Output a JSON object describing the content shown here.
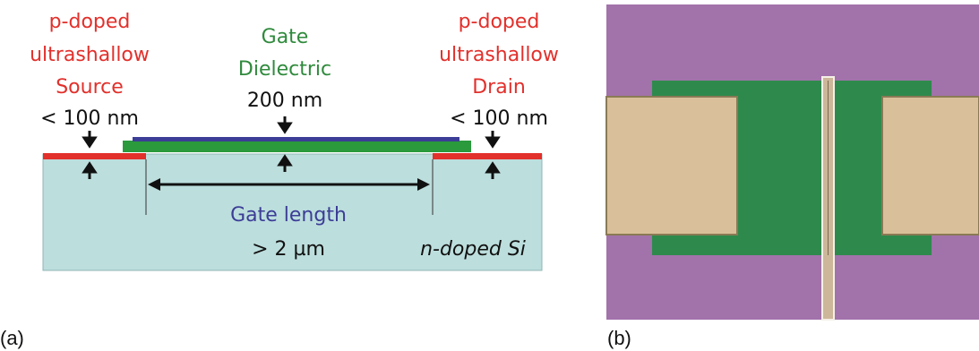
{
  "panel_a": {
    "source": {
      "lines": [
        "p-doped",
        "ultrashallow",
        "Source"
      ],
      "depth": "< 100 nm"
    },
    "gate": {
      "lines": [
        "Gate",
        "Dielectric"
      ],
      "thickness": "200 nm"
    },
    "drain": {
      "lines": [
        "p-doped",
        "ultrashallow",
        "Drain"
      ],
      "depth": "< 100 nm"
    },
    "gate_length": {
      "label": "Gate length",
      "value": "> 2 µm"
    },
    "substrate": "n-doped Si",
    "caption": "(a)"
  },
  "panel_b": {
    "caption": "(b)"
  }
}
